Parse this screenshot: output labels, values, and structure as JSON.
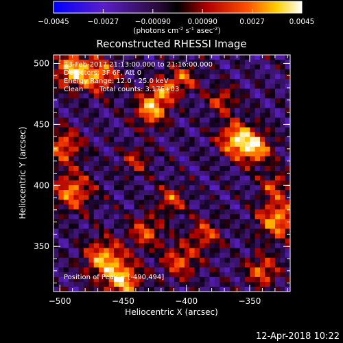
{
  "colorbar": {
    "ticks": [
      "-0.0045",
      "-0.0027",
      "-0.00090",
      "0.00090",
      "0.0027",
      "0.0045"
    ],
    "unit_parts": [
      "(photons cm",
      "-2",
      " s",
      "-1",
      " asec",
      "-2",
      ")"
    ]
  },
  "title": "Reconstructed RHESSI Image",
  "annotations": {
    "time": "23-Feb-2017 21:13:00.000 to 21:16:00.000",
    "detectors": "Detectors: 3F 6F, Att 0",
    "energy": "Energy Range: 12.0 - 25.0 keV",
    "method": "Clean",
    "counts": "Total counts: 3.17E+03",
    "peak": "Position of Peak = [-490,494]"
  },
  "footer_timestamp": "12-Apr-2018 10:22",
  "chart_data": {
    "type": "heatmap",
    "title": "Reconstructed RHESSI Image",
    "xlabel": "Heliocentric X (arcsec)",
    "ylabel": "Heliocentric Y (arcsec)",
    "xlim": [
      -505,
      -318
    ],
    "ylim": [
      313,
      507
    ],
    "xticks": [
      -500,
      -450,
      -400,
      -350
    ],
    "yticks": [
      350,
      400,
      450,
      500
    ],
    "zlim": [
      -0.0045,
      0.0045
    ],
    "zunit": "photons cm^-2 s^-1 asec^-2",
    "colormap": [
      "#0000ff",
      "#6a1aa8",
      "#000000",
      "#c00000",
      "#ff5a00",
      "#ffd200",
      "#ffffff"
    ],
    "grid_cols": 47,
    "grid_rows": 49,
    "peak": [
      -490,
      494
    ],
    "sources": [
      {
        "x": -490,
        "y": 494,
        "amp": 0.0044,
        "sigma": 10
      },
      {
        "x": -468,
        "y": 490,
        "amp": 0.0035,
        "sigma": 10
      },
      {
        "x": -428,
        "y": 462,
        "amp": 0.0042,
        "sigma": 9
      },
      {
        "x": -418,
        "y": 478,
        "amp": 0.003,
        "sigma": 8
      },
      {
        "x": -402,
        "y": 488,
        "amp": 0.0028,
        "sigma": 8
      },
      {
        "x": -360,
        "y": 438,
        "amp": 0.0045,
        "sigma": 10
      },
      {
        "x": -345,
        "y": 430,
        "amp": 0.0038,
        "sigma": 9
      },
      {
        "x": -372,
        "y": 470,
        "amp": 0.0026,
        "sigma": 8
      },
      {
        "x": -497,
        "y": 432,
        "amp": 0.0032,
        "sigma": 10
      },
      {
        "x": -490,
        "y": 395,
        "amp": 0.0036,
        "sigma": 11
      },
      {
        "x": -465,
        "y": 340,
        "amp": 0.004,
        "sigma": 11
      },
      {
        "x": -450,
        "y": 322,
        "amp": 0.0042,
        "sigma": 10
      },
      {
        "x": -432,
        "y": 362,
        "amp": 0.003,
        "sigma": 9
      },
      {
        "x": -412,
        "y": 388,
        "amp": 0.0028,
        "sigma": 8
      },
      {
        "x": -405,
        "y": 338,
        "amp": 0.003,
        "sigma": 10
      },
      {
        "x": -385,
        "y": 360,
        "amp": 0.0027,
        "sigma": 9
      },
      {
        "x": -328,
        "y": 372,
        "amp": 0.004,
        "sigma": 11
      },
      {
        "x": -340,
        "y": 330,
        "amp": 0.0032,
        "sigma": 9
      },
      {
        "x": -330,
        "y": 400,
        "amp": 0.0026,
        "sigma": 8
      },
      {
        "x": -440,
        "y": 420,
        "amp": 0.0022,
        "sigma": 8
      }
    ]
  }
}
